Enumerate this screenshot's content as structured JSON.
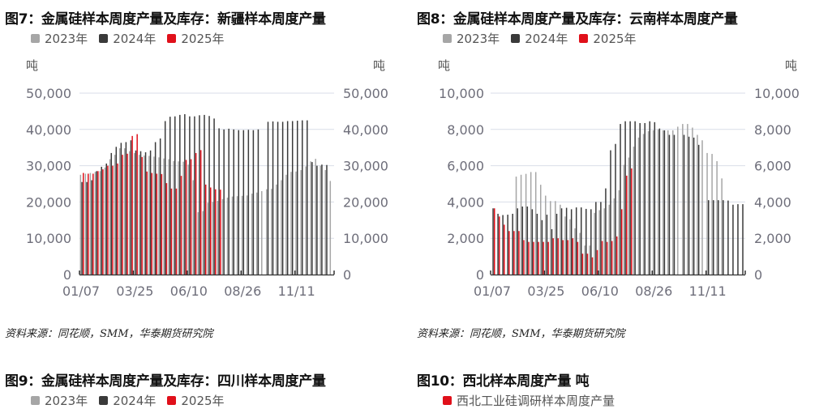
{
  "colors": {
    "y2023": "#a6a6a6",
    "y2024": "#3a3a3a",
    "y2025": "#e0101a",
    "grid": "#d9dee8",
    "axis": "#333333"
  },
  "chart_data": [
    {
      "type": "bar",
      "title": "图7：金属硅样本周度产量及库存：新疆样本周度产量",
      "legend": [
        "2023年",
        "2024年",
        "2025年"
      ],
      "unit_left": "吨",
      "unit_right": "吨",
      "ylim": [
        0,
        50000
      ],
      "yticks": [
        "0",
        "10,000",
        "20,000",
        "30,000",
        "40,000",
        "50,000"
      ],
      "xticks": [
        "01/07",
        "03/25",
        "06/10",
        "08/26",
        "11/11"
      ],
      "source": "资料来源：同花顺，SMM，华泰期货研究院",
      "series": [
        {
          "name": "2023年",
          "values": [
            27500,
            27800,
            28000,
            28300,
            28500,
            29500,
            31800,
            33000,
            34800,
            34800,
            34000,
            33500,
            33000,
            32800,
            32700,
            32500,
            32300,
            32000,
            31800,
            31300,
            31200,
            31100,
            30300,
            26000,
            17200,
            17500,
            19800,
            20000,
            20300,
            20800,
            21200,
            21500,
            21600,
            21700,
            21800,
            22300,
            22600,
            23000,
            23500,
            23600,
            24800,
            26000,
            27500,
            28300,
            28400,
            28800,
            29800,
            31200,
            31900,
            30000,
            28800,
            25800
          ]
        },
        {
          "name": "2024年",
          "values": [
            25500,
            25500,
            26000,
            28500,
            29700,
            30600,
            33500,
            35200,
            36300,
            36500,
            37000,
            34200,
            34000,
            33700,
            34200,
            36500,
            37500,
            42300,
            43500,
            43600,
            44000,
            44200,
            43600,
            43600,
            43900,
            44000,
            43700,
            43000,
            40300,
            40000,
            40200,
            40000,
            39800,
            39800,
            39900,
            39800,
            40000,
            0,
            42100,
            42200,
            42100,
            42100,
            42300,
            42300,
            42400,
            42500,
            42500,
            31000,
            30000,
            30300,
            30200,
            0
          ]
        },
        {
          "name": "2025年",
          "values": [
            28000,
            27800,
            27800,
            28500,
            29000,
            30000,
            30000,
            30600,
            33000,
            33300,
            38200,
            38700,
            32400,
            28400,
            28000,
            27800,
            27700,
            25200,
            23700,
            23700,
            27200,
            31600,
            31800,
            33500,
            34300,
            24800,
            24000,
            23500,
            23400
          ]
        }
      ]
    },
    {
      "type": "bar",
      "title": "图8：金属硅样本周度产量及库存：云南样本周度产量",
      "legend": [
        "2023年",
        "2024年",
        "2025年"
      ],
      "unit_left": "吨",
      "unit_right": "吨",
      "ylim": [
        0,
        10000
      ],
      "yticks": [
        "0",
        "2,000",
        "4,000",
        "6,000",
        "8,000",
        "10,000"
      ],
      "xticks": [
        "01/07",
        "03/25",
        "06/10",
        "08/26",
        "11/11"
      ],
      "source": "资料来源：同花顺，SMM，华泰期货研究院",
      "series": [
        {
          "name": "2023年",
          "values": [
            0,
            0,
            0,
            0,
            0,
            5400,
            5500,
            5550,
            5650,
            5650,
            4950,
            4350,
            4050,
            4050,
            3850,
            3200,
            3050,
            2550,
            2300,
            1600,
            1600,
            3400,
            3550,
            3650,
            3850,
            4200,
            4650,
            6050,
            6450,
            7050,
            7550,
            7750,
            7900,
            7950,
            8000,
            7950,
            7950,
            7950,
            8150,
            8300,
            8300,
            8100,
            7700,
            7400,
            6700,
            6650,
            6250,
            5300,
            0,
            0,
            0,
            0
          ]
        },
        {
          "name": "2024年",
          "values": [
            3650,
            3350,
            3280,
            3300,
            3350,
            3650,
            3750,
            3750,
            3600,
            3350,
            3000,
            3300,
            2500,
            3350,
            3650,
            3680,
            3600,
            3700,
            3700,
            3620,
            3600,
            4000,
            4000,
            4750,
            6850,
            7200,
            8300,
            8450,
            8450,
            8450,
            8350,
            8350,
            8450,
            8400,
            8050,
            7950,
            7700,
            7700,
            0,
            7700,
            7600,
            7550,
            7150,
            0,
            4100,
            4100,
            4100,
            4100,
            4080,
            3850,
            3880,
            3880
          ]
        },
        {
          "name": "2025年",
          "values": [
            3650,
            3200,
            2750,
            2400,
            2400,
            2400,
            1900,
            1800,
            1800,
            1800,
            1800,
            1800,
            2000,
            2000,
            1900,
            1900,
            2000,
            1800,
            1150,
            1150,
            950,
            1350,
            1850,
            1800,
            1850,
            2100,
            3600,
            5450,
            5850
          ]
        }
      ]
    }
  ],
  "bottom": {
    "fig9_title": "图9：金属硅样本周度产量及库存：四川样本周度产量",
    "fig9_legend": [
      "2023年",
      "2024年",
      "2025年"
    ],
    "fig10_title": "图10：西北样本周度产量 吨",
    "fig10_legend": "西北工业硅调研样本周度产量"
  }
}
